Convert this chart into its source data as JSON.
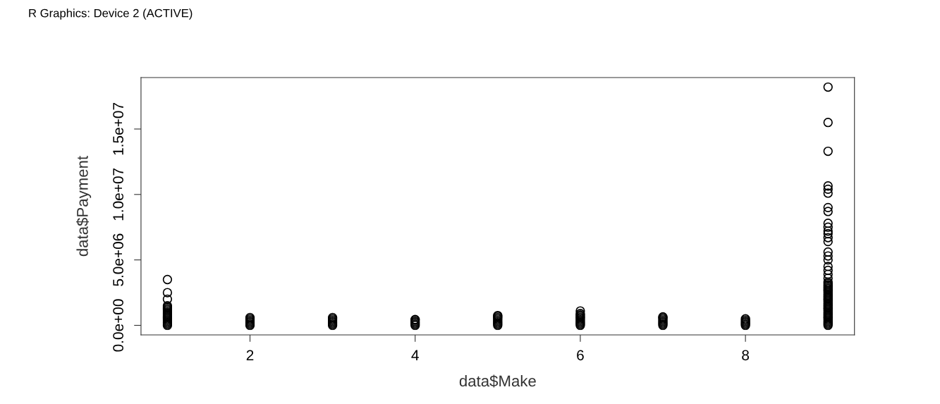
{
  "chart_data": {
    "type": "scatter",
    "xlabel": "data$Make",
    "ylabel": "data$Payment",
    "annotations": [
      "R Graphics: Device 2 (ACTIVE)"
    ],
    "xlim": [
      0.68,
      9.32
    ],
    "ylim": [
      -730000,
      18930000
    ],
    "xticks": [
      2,
      4,
      6,
      8
    ],
    "yticks": [
      {
        "value": 0,
        "label": "0.0e+00"
      },
      {
        "value": 5000000,
        "label": "5.0e+06"
      },
      {
        "value": 10000000,
        "label": "1.0e+07"
      },
      {
        "value": 15000000,
        "label": "1.5e+07"
      }
    ],
    "marker": "circle",
    "grid": false,
    "series": [
      {
        "color": "#000000",
        "x": [
          1,
          1,
          1,
          1,
          1,
          1,
          1,
          1,
          1,
          1,
          1,
          1,
          1,
          1,
          1,
          1,
          1,
          1,
          1,
          2,
          2,
          2,
          2,
          2,
          2,
          2,
          3,
          3,
          3,
          3,
          3,
          3,
          3,
          4,
          4,
          4,
          4,
          4,
          4,
          5,
          5,
          5,
          5,
          5,
          5,
          5,
          5,
          5,
          6,
          6,
          6,
          6,
          6,
          6,
          6,
          6,
          6,
          6,
          6,
          7,
          7,
          7,
          7,
          7,
          7,
          7,
          7,
          8,
          8,
          8,
          8,
          8,
          8,
          9,
          9,
          9,
          9,
          9,
          9,
          9,
          9,
          9,
          9,
          9,
          9,
          9,
          9,
          9,
          9,
          9,
          9,
          9,
          9,
          9,
          9,
          9,
          9,
          9,
          9,
          9,
          9,
          9,
          9,
          9,
          9,
          9,
          9,
          9,
          9,
          9,
          9,
          9,
          9,
          9,
          9,
          9,
          9,
          9,
          9,
          9,
          9,
          9,
          9,
          9,
          9,
          9,
          9,
          9
        ],
        "values": [
          0,
          100000,
          200000,
          300000,
          400000,
          500000,
          600000,
          700000,
          800000,
          900000,
          1000000,
          1100000,
          1200000,
          1300000,
          1400000,
          1500000,
          2000000,
          2500000,
          3500000,
          0,
          100000,
          200000,
          300000,
          400000,
          500000,
          600000,
          0,
          100000,
          200000,
          300000,
          400000,
          500000,
          600000,
          0,
          100000,
          200000,
          300000,
          400000,
          450000,
          0,
          100000,
          200000,
          300000,
          400000,
          500000,
          600000,
          700000,
          750000,
          0,
          100000,
          200000,
          300000,
          400000,
          500000,
          600000,
          700000,
          800000,
          900000,
          1100000,
          0,
          100000,
          200000,
          300000,
          400000,
          500000,
          600000,
          650000,
          0,
          100000,
          200000,
          300000,
          400000,
          500000,
          0,
          100000,
          200000,
          300000,
          400000,
          500000,
          600000,
          700000,
          800000,
          900000,
          1000000,
          1100000,
          1200000,
          1300000,
          1400000,
          1500000,
          1600000,
          1700000,
          1800000,
          1900000,
          2000000,
          2100000,
          2200000,
          2300000,
          2400000,
          2500000,
          2600000,
          2700000,
          2800000,
          2900000,
          3000000,
          3100000,
          3200000,
          3300000,
          3600000,
          3900000,
          4200000,
          4500000,
          5000000,
          5300000,
          5600000,
          6400000,
          6700000,
          7000000,
          7200000,
          7500000,
          7800000,
          8700000,
          9000000,
          10100000,
          10400000,
          10650000,
          13300000,
          15500000,
          18200000
        ]
      }
    ]
  }
}
